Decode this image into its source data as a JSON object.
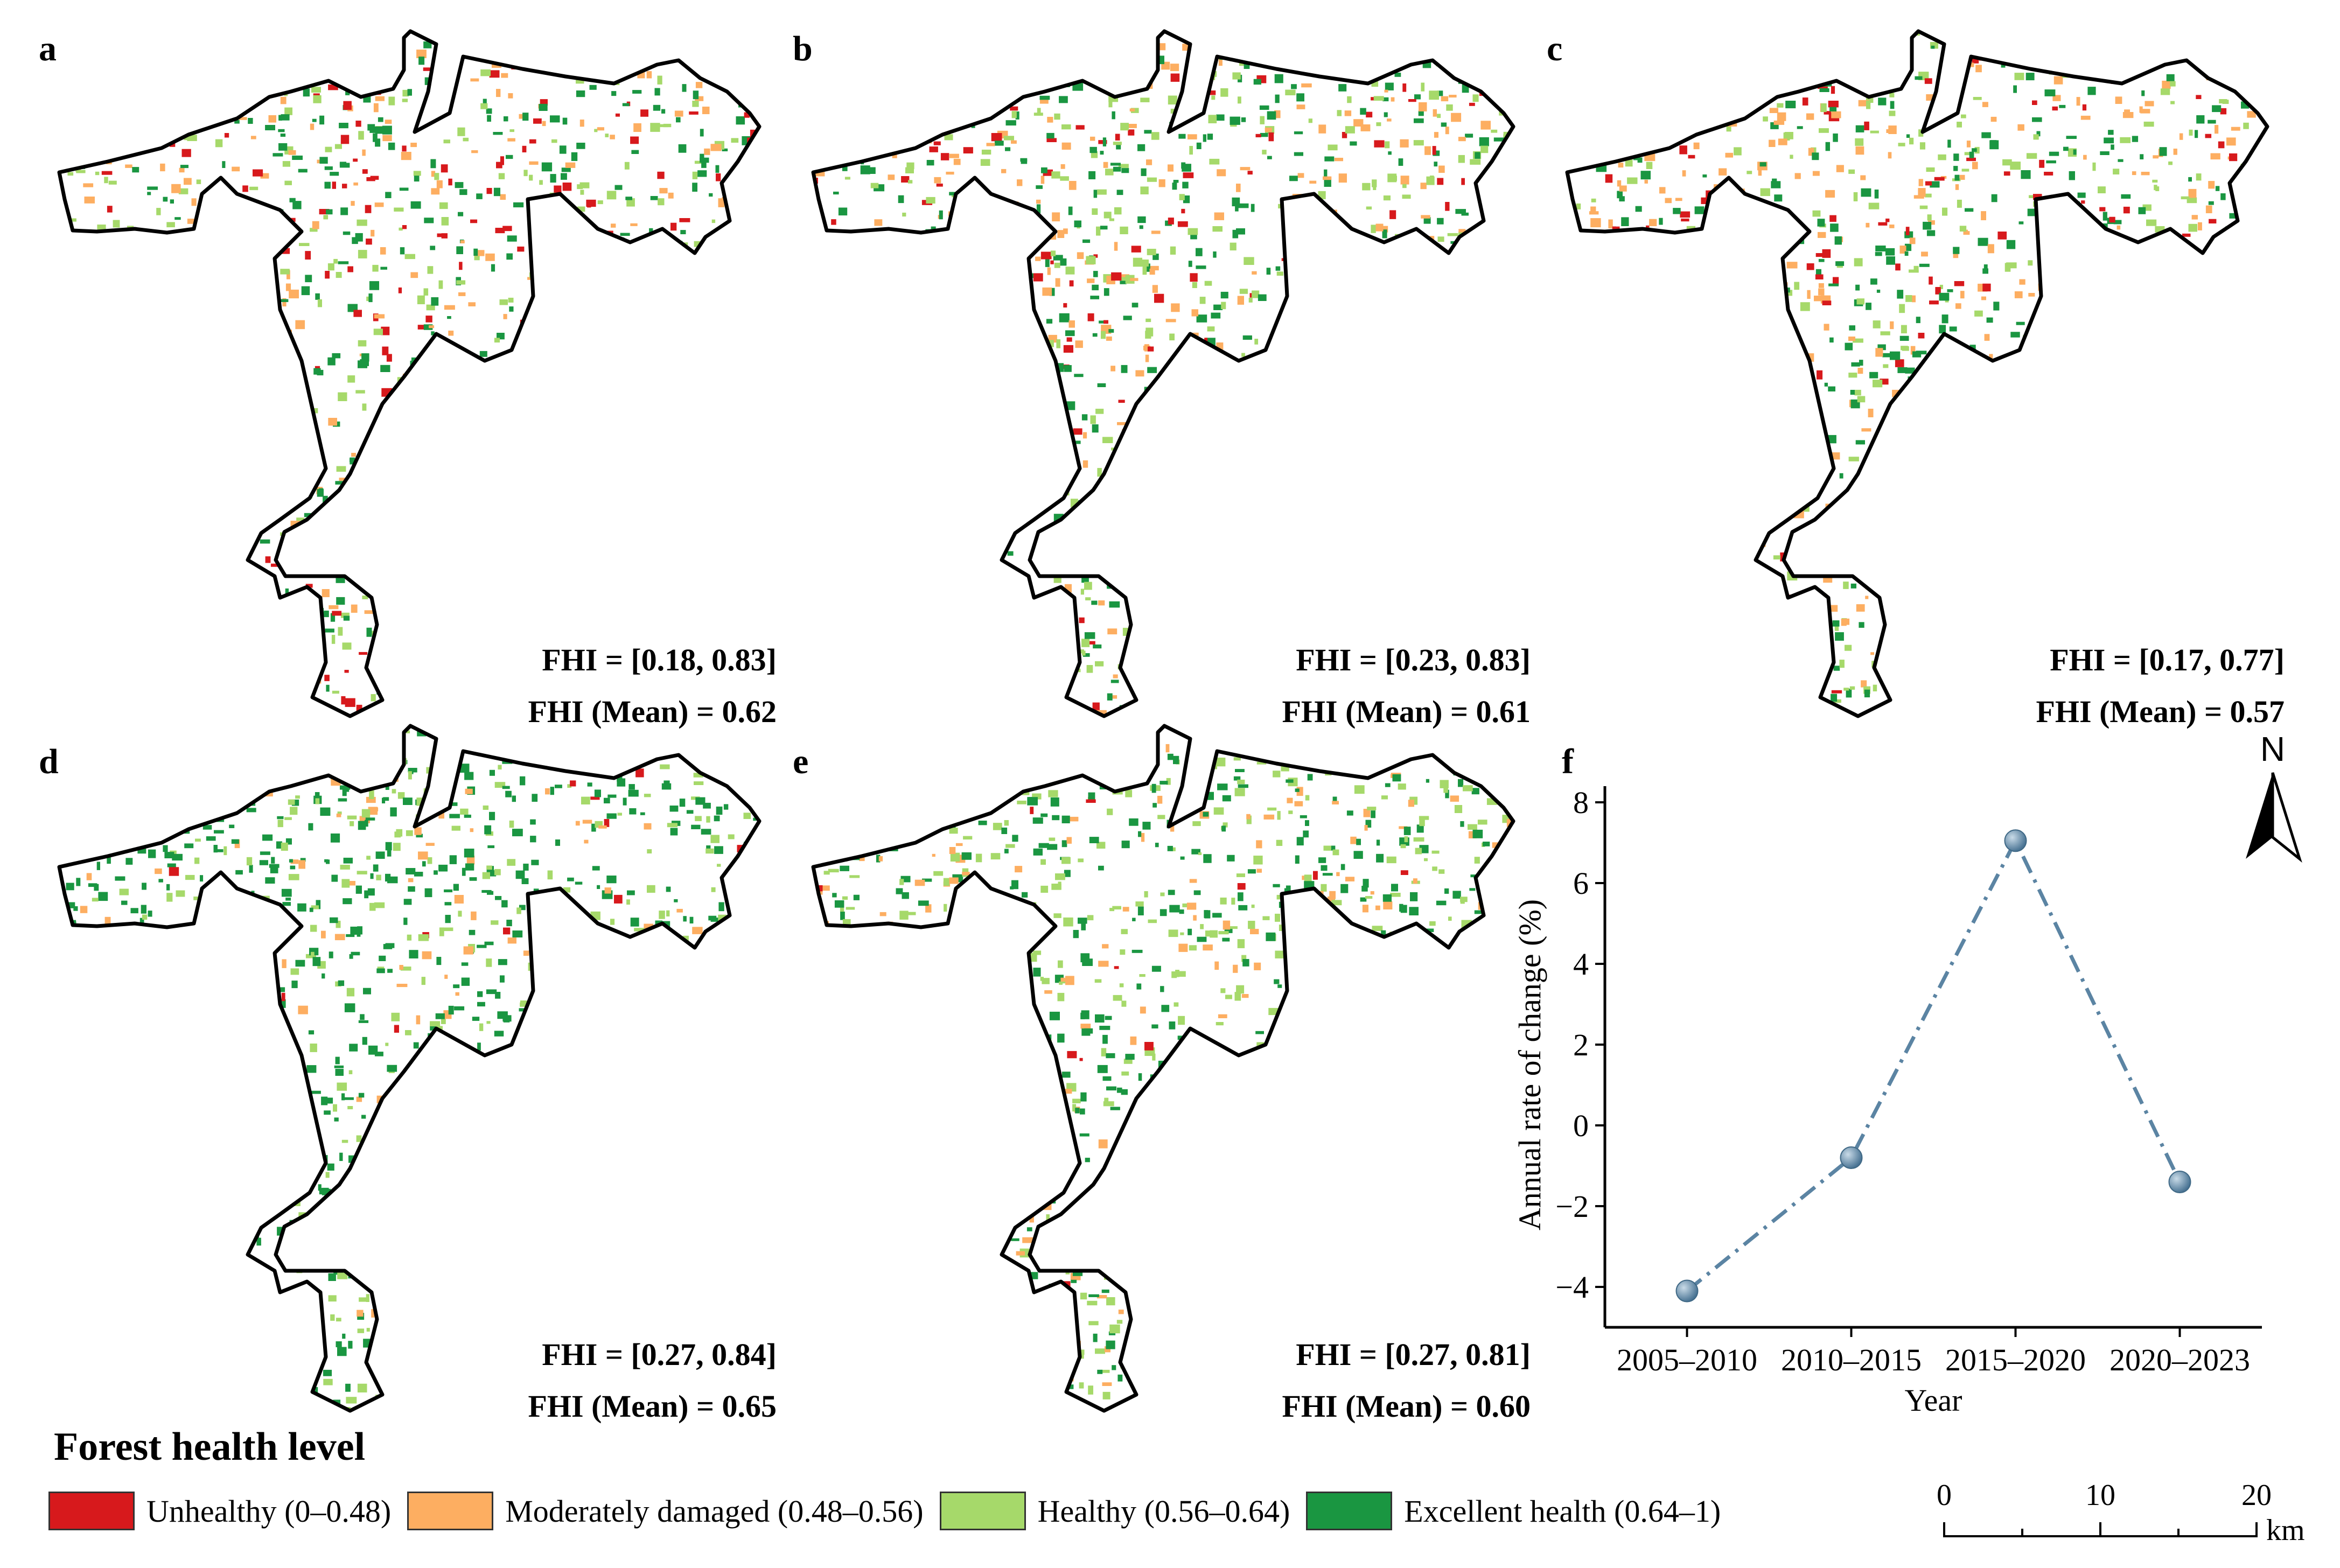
{
  "panels": [
    {
      "letter": "a",
      "range": "FHI = [0.18, 0.83]",
      "mean": "FHI (Mean) = 0.62"
    },
    {
      "letter": "b",
      "range": "FHI = [0.23, 0.83]",
      "mean": "FHI (Mean) = 0.61"
    },
    {
      "letter": "c",
      "range": "FHI = [0.17, 0.77]",
      "mean": "FHI (Mean) = 0.57"
    },
    {
      "letter": "d",
      "range": "FHI = [0.27, 0.84]",
      "mean": "FHI (Mean) = 0.65"
    },
    {
      "letter": "e",
      "range": "FHI = [0.27, 0.81]",
      "mean": "FHI (Mean) = 0.60"
    }
  ],
  "chart_letter": "f",
  "chart_data": {
    "type": "line",
    "categories": [
      "2005–2010",
      "2010–2015",
      "2015–2020",
      "2020–2023"
    ],
    "values": [
      -4.1,
      -0.8,
      7.05,
      -1.4
    ],
    "xlabel": "Year",
    "ylabel": "Annual rate of change (%)",
    "ylim": [
      -5,
      8
    ],
    "yticks": [
      "−4",
      "−2",
      "0",
      "2",
      "4",
      "6",
      "8"
    ],
    "line_color": "#5b84a3",
    "line_style": "dash-dot"
  },
  "north_label": "N",
  "legend": {
    "title": "Forest health level",
    "items": [
      {
        "label": "Unhealthy (0–0.48)",
        "color": "#d7191c"
      },
      {
        "label": "Moderately damaged (0.48–0.56)",
        "color": "#fdae61"
      },
      {
        "label": "Healthy (0.56–0.64)",
        "color": "#a6d96a"
      },
      {
        "label": "Excellent health (0.64–1)",
        "color": "#1a9641"
      }
    ]
  },
  "scalebar": {
    "ticks": [
      "0",
      "10",
      "20"
    ],
    "unit": "km"
  }
}
